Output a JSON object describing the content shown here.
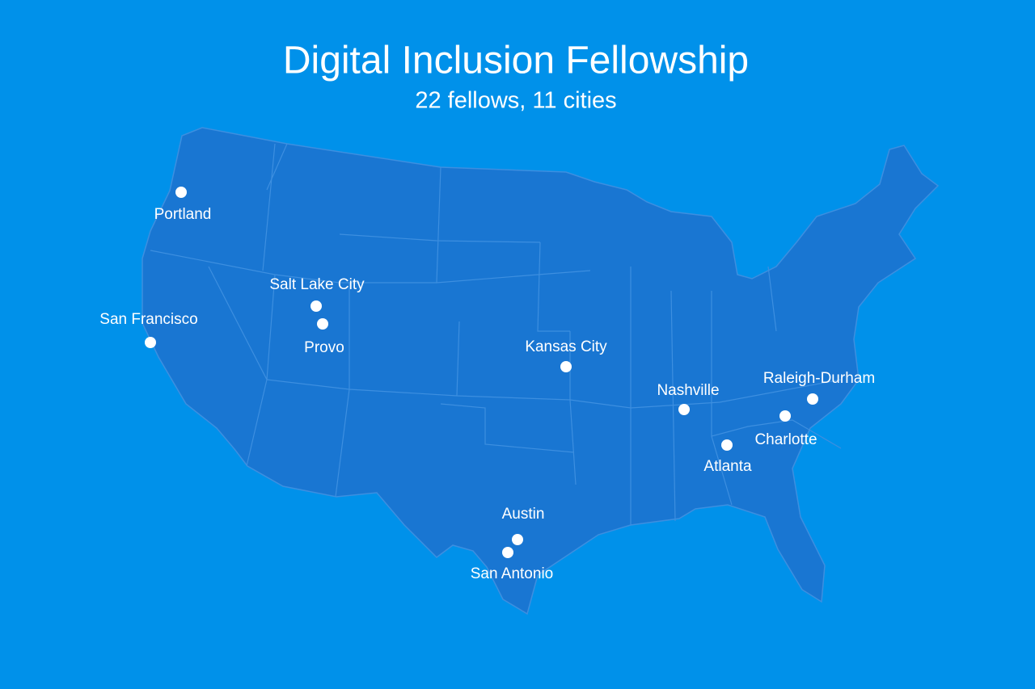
{
  "header": {
    "title": "Digital Inclusion Fellowship",
    "subtitle": "22 fellows, 11 cities"
  },
  "cities": [
    "Portland",
    "Salt Lake City",
    "Provo",
    "San Francisco",
    "Kansas City",
    "Nashville",
    "Raleigh-Durham",
    "Charlotte",
    "Atlanta",
    "Austin",
    "San Antonio"
  ]
}
